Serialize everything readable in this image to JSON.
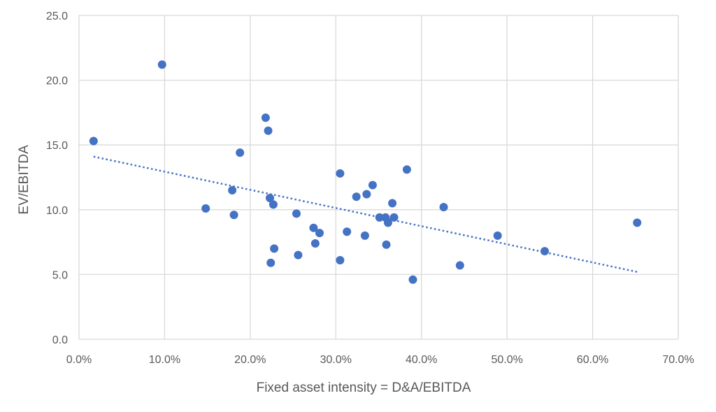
{
  "chart_data": {
    "type": "scatter",
    "title": "",
    "xlabel": "Fixed asset intensity = D&A/EBITDA",
    "ylabel": "EV/EBITDA",
    "xlim": [
      0.0,
      0.7
    ],
    "ylim": [
      0.0,
      25.0
    ],
    "x_ticks": [
      0.0,
      0.1,
      0.2,
      0.3,
      0.4,
      0.5,
      0.6,
      0.7
    ],
    "x_tick_labels": [
      "0.0%",
      "10.0%",
      "20.0%",
      "30.0%",
      "40.0%",
      "50.0%",
      "60.0%",
      "70.0%"
    ],
    "y_ticks": [
      0,
      5,
      10,
      15,
      20,
      25
    ],
    "y_tick_labels": [
      "0.0",
      "5.0",
      "10.0",
      "15.0",
      "20.0",
      "25.0"
    ],
    "grid": true,
    "marker_color": "#4472c4",
    "trendline": {
      "style": "dotted",
      "color": "#4472c4",
      "x": [
        0.017,
        0.652
      ],
      "y": [
        14.1,
        5.2
      ]
    },
    "points": [
      {
        "x": 0.017,
        "y": 15.3
      },
      {
        "x": 0.097,
        "y": 21.2
      },
      {
        "x": 0.148,
        "y": 10.1
      },
      {
        "x": 0.179,
        "y": 11.5
      },
      {
        "x": 0.181,
        "y": 9.6
      },
      {
        "x": 0.188,
        "y": 14.4
      },
      {
        "x": 0.218,
        "y": 17.1
      },
      {
        "x": 0.221,
        "y": 16.1
      },
      {
        "x": 0.223,
        "y": 10.9
      },
      {
        "x": 0.224,
        "y": 5.9
      },
      {
        "x": 0.227,
        "y": 10.4
      },
      {
        "x": 0.228,
        "y": 7.0
      },
      {
        "x": 0.254,
        "y": 9.7
      },
      {
        "x": 0.256,
        "y": 6.5
      },
      {
        "x": 0.274,
        "y": 8.6
      },
      {
        "x": 0.276,
        "y": 7.4
      },
      {
        "x": 0.281,
        "y": 8.2
      },
      {
        "x": 0.305,
        "y": 12.8
      },
      {
        "x": 0.305,
        "y": 6.1
      },
      {
        "x": 0.313,
        "y": 8.3
      },
      {
        "x": 0.324,
        "y": 11.0
      },
      {
        "x": 0.334,
        "y": 8.0
      },
      {
        "x": 0.336,
        "y": 11.2
      },
      {
        "x": 0.343,
        "y": 11.9
      },
      {
        "x": 0.351,
        "y": 9.4
      },
      {
        "x": 0.358,
        "y": 9.4
      },
      {
        "x": 0.359,
        "y": 7.3
      },
      {
        "x": 0.361,
        "y": 9.0
      },
      {
        "x": 0.366,
        "y": 10.5
      },
      {
        "x": 0.368,
        "y": 9.4
      },
      {
        "x": 0.383,
        "y": 13.1
      },
      {
        "x": 0.39,
        "y": 4.6
      },
      {
        "x": 0.426,
        "y": 10.2
      },
      {
        "x": 0.445,
        "y": 5.7
      },
      {
        "x": 0.489,
        "y": 8.0
      },
      {
        "x": 0.544,
        "y": 6.8
      },
      {
        "x": 0.652,
        "y": 9.0
      }
    ]
  }
}
